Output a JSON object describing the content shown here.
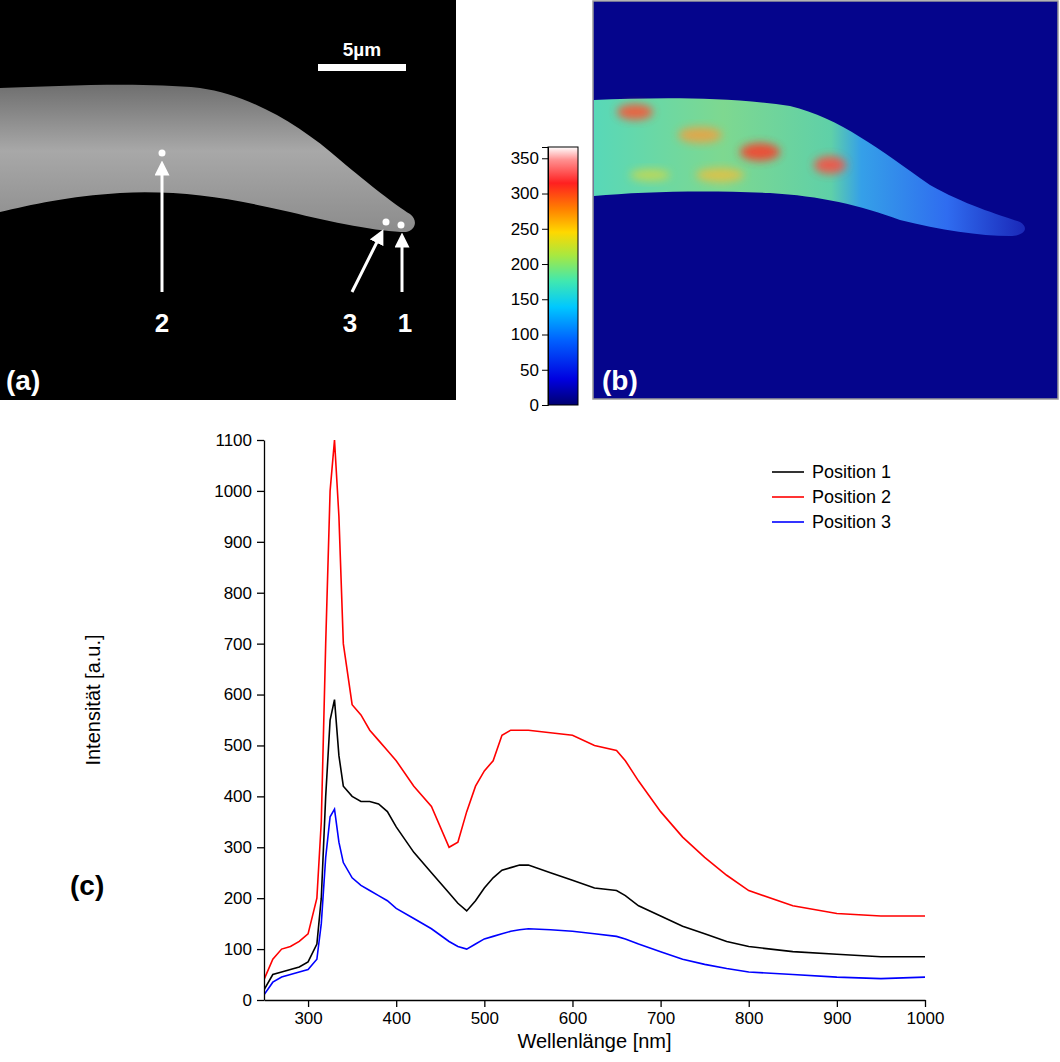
{
  "sem_image": {
    "label": "(a)",
    "scale_bar": "5µm",
    "markers": [
      "1",
      "2",
      "3"
    ]
  },
  "cl_map": {
    "label": "(b)",
    "colorbar": {
      "range": [
        0,
        366
      ],
      "ticks": [
        0,
        50,
        100,
        150,
        200,
        250,
        300,
        350
      ]
    }
  },
  "chart_data": {
    "type": "line",
    "annotations": [
      "(c)"
    ],
    "x_label": "Wellenlänge [nm]",
    "y_label": "Intensität [a.u.]",
    "x": [
      250,
      260,
      270,
      280,
      290,
      300,
      310,
      315,
      320,
      325,
      330,
      335,
      340,
      350,
      360,
      370,
      380,
      390,
      400,
      420,
      440,
      460,
      470,
      480,
      490,
      500,
      510,
      520,
      530,
      540,
      550,
      575,
      600,
      625,
      650,
      660,
      675,
      700,
      725,
      750,
      775,
      800,
      850,
      900,
      950,
      1000
    ],
    "series": [
      {
        "name": "Position 1",
        "color": "#000000",
        "values": [
          20,
          50,
          55,
          60,
          65,
          75,
          110,
          200,
          400,
          550,
          590,
          480,
          420,
          400,
          390,
          390,
          385,
          370,
          340,
          290,
          250,
          210,
          190,
          175,
          195,
          220,
          240,
          255,
          260,
          265,
          265,
          250,
          235,
          220,
          215,
          205,
          185,
          165,
          145,
          130,
          115,
          105,
          95,
          90,
          85,
          85
        ]
      },
      {
        "name": "Position 2",
        "color": "#ff0000",
        "values": [
          40,
          80,
          100,
          105,
          115,
          130,
          200,
          350,
          700,
          1000,
          1100,
          950,
          700,
          580,
          560,
          530,
          510,
          490,
          470,
          420,
          380,
          300,
          310,
          370,
          420,
          450,
          470,
          520,
          530,
          530,
          530,
          525,
          520,
          500,
          490,
          470,
          430,
          370,
          320,
          280,
          245,
          215,
          185,
          170,
          165,
          165
        ]
      },
      {
        "name": "Position 3",
        "color": "#0000ff",
        "values": [
          10,
          35,
          45,
          50,
          55,
          60,
          80,
          150,
          280,
          360,
          375,
          310,
          270,
          240,
          225,
          215,
          205,
          195,
          180,
          160,
          140,
          115,
          105,
          100,
          110,
          120,
          125,
          130,
          135,
          138,
          140,
          138,
          135,
          130,
          125,
          120,
          110,
          95,
          80,
          70,
          62,
          55,
          50,
          45,
          42,
          45
        ]
      }
    ],
    "xlim": [
      250,
      1000
    ],
    "ylim": [
      0,
      1100
    ],
    "xticks": [
      300,
      400,
      500,
      600,
      700,
      800,
      900,
      1000
    ],
    "yticks": [
      0,
      100,
      200,
      300,
      400,
      500,
      600,
      700,
      800,
      900,
      1000,
      1100
    ],
    "grid": false,
    "legend": "upper right"
  }
}
